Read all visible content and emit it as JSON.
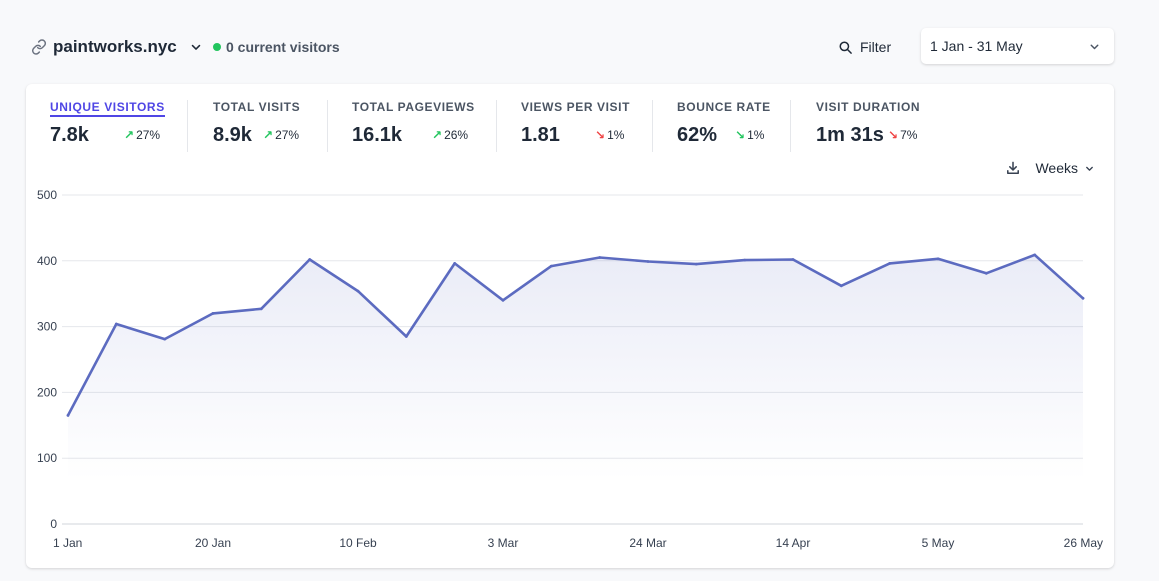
{
  "header": {
    "site_name": "paintworks.nyc",
    "current_visitors": "0 current visitors",
    "filter_label": "Filter",
    "date_range": "1 Jan - 31 May"
  },
  "stats": [
    {
      "title": "UNIQUE VISITORS",
      "value": "7.8k",
      "change": "27%",
      "direction": "up",
      "active": true
    },
    {
      "title": "TOTAL VISITS",
      "value": "8.9k",
      "change": "27%",
      "direction": "up"
    },
    {
      "title": "TOTAL PAGEVIEWS",
      "value": "16.1k",
      "change": "26%",
      "direction": "up"
    },
    {
      "title": "VIEWS PER VISIT",
      "value": "1.81",
      "change": "1%",
      "direction": "down-red"
    },
    {
      "title": "BOUNCE RATE",
      "value": "62%",
      "change": "1%",
      "direction": "down-green"
    },
    {
      "title": "VISIT DURATION",
      "value": "1m 31s",
      "change": "7%",
      "direction": "down-red"
    }
  ],
  "controls": {
    "interval_label": "Weeks"
  },
  "colors": {
    "accent": "#5c6bc0",
    "positive": "#22c55e",
    "negative": "#ef4444",
    "active_tab": "#4f46e5"
  },
  "icons": {
    "site": "link-icon",
    "filter": "search-icon",
    "download": "download-icon",
    "dropdown": "chevron-down-icon"
  },
  "chart_data": {
    "type": "area",
    "series": [
      {
        "values": [
          165,
          304,
          281,
          320,
          327,
          402,
          354,
          285,
          396,
          340,
          392,
          405,
          399,
          395,
          401,
          402,
          362,
          396,
          403,
          381,
          409,
          343
        ]
      }
    ],
    "x_tick_labels": [
      "1 Jan",
      "20 Jan",
      "10 Feb",
      "3 Mar",
      "24 Mar",
      "14 Apr",
      "5 May",
      "26 May"
    ],
    "y_ticks": [
      0,
      100,
      200,
      300,
      400,
      500
    ],
    "ylim": [
      0,
      500
    ],
    "grid": true
  }
}
